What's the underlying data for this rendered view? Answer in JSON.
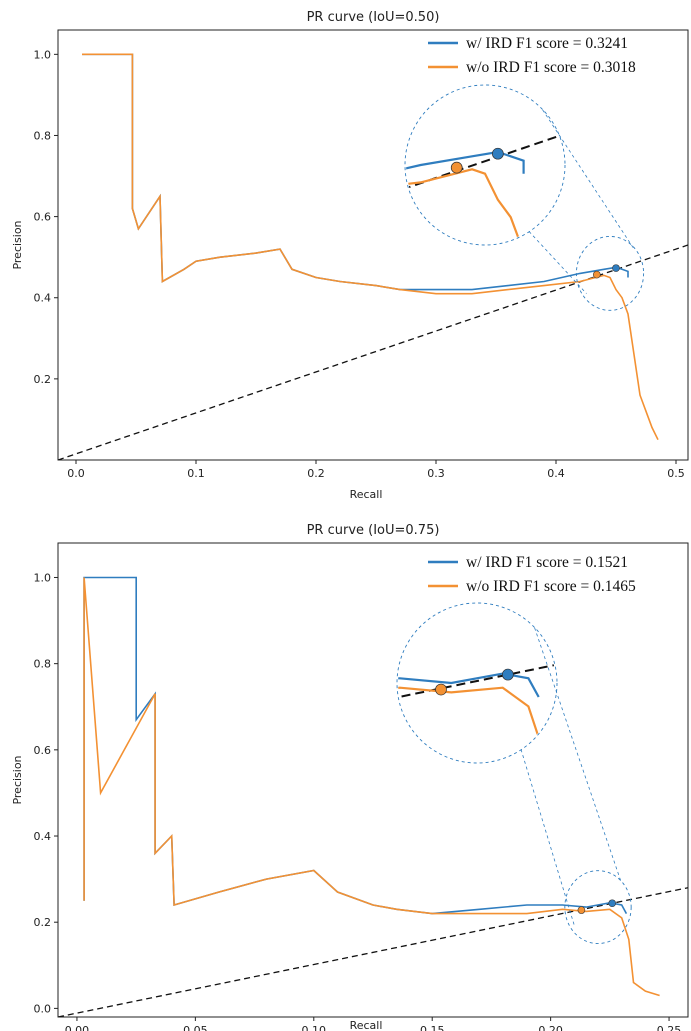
{
  "colors": {
    "w_ird": "#2f7dbf",
    "wo_ird": "#f39133",
    "guide": "#111111"
  },
  "chart_data": [
    {
      "type": "line",
      "title": "PR curve (IoU=0.50)",
      "xlabel": "Recall",
      "ylabel": "Precision",
      "xlim": [
        -0.015,
        0.51
      ],
      "ylim": [
        0.0,
        1.06
      ],
      "xticks": [
        "0.0",
        "0.1",
        "0.2",
        "0.3",
        "0.4",
        "0.5"
      ],
      "yticks": [
        "0.2",
        "0.4",
        "0.6",
        "0.8",
        "1.0"
      ],
      "legend_position": "top-right",
      "legend": [
        {
          "series": "w/ IRD",
          "label": "w/ IRD    F1 score = 0.3241"
        },
        {
          "series": "w/o IRD",
          "label": "w/o IRD  F1 score = 0.3018"
        }
      ],
      "series": [
        {
          "name": "w/ IRD",
          "color": "#2f7dbf",
          "x": [
            0.005,
            0.047,
            0.047,
            0.052,
            0.07,
            0.072,
            0.09,
            0.1,
            0.12,
            0.15,
            0.17,
            0.18,
            0.2,
            0.22,
            0.25,
            0.27,
            0.3,
            0.33,
            0.36,
            0.39,
            0.42,
            0.44,
            0.45,
            0.455,
            0.46,
            0.46
          ],
          "y": [
            1.0,
            1.0,
            0.62,
            0.57,
            0.65,
            0.44,
            0.47,
            0.49,
            0.5,
            0.51,
            0.52,
            0.47,
            0.45,
            0.44,
            0.43,
            0.42,
            0.42,
            0.42,
            0.43,
            0.44,
            0.46,
            0.47,
            0.475,
            0.47,
            0.465,
            0.45
          ]
        },
        {
          "name": "w/o IRD",
          "color": "#f39133",
          "x": [
            0.005,
            0.047,
            0.047,
            0.052,
            0.07,
            0.072,
            0.09,
            0.1,
            0.12,
            0.15,
            0.17,
            0.18,
            0.2,
            0.22,
            0.25,
            0.27,
            0.3,
            0.33,
            0.36,
            0.39,
            0.42,
            0.44,
            0.445,
            0.45,
            0.455,
            0.46,
            0.465,
            0.47,
            0.475,
            0.48,
            0.485
          ],
          "y": [
            1.0,
            1.0,
            0.62,
            0.57,
            0.65,
            0.44,
            0.47,
            0.49,
            0.5,
            0.51,
            0.52,
            0.47,
            0.45,
            0.44,
            0.43,
            0.42,
            0.41,
            0.41,
            0.42,
            0.43,
            0.44,
            0.455,
            0.45,
            0.42,
            0.4,
            0.36,
            0.26,
            0.16,
            0.12,
            0.08,
            0.05
          ]
        }
      ],
      "f1_points": [
        {
          "series": "w/ IRD",
          "x": 0.45,
          "y": 0.473
        },
        {
          "series": "w/o IRD",
          "x": 0.434,
          "y": 0.457
        }
      ],
      "reference_line": {
        "x": [
          -0.015,
          0.51
        ],
        "y": [
          0.0,
          0.53
        ],
        "style": "dashed"
      },
      "zoom_region": {
        "center": [
          0.445,
          0.46
        ],
        "radius_x": 0.028
      }
    },
    {
      "type": "line",
      "title": "PR curve (IoU=0.75)",
      "xlabel": "Recall",
      "ylabel": "Precision",
      "xlim": [
        -0.008,
        0.258
      ],
      "ylim": [
        -0.02,
        1.08
      ],
      "xticks": [
        "0.00",
        "0.05",
        "0.10",
        "0.15",
        "0.20",
        "0.25"
      ],
      "yticks": [
        "0.0",
        "0.2",
        "0.4",
        "0.6",
        "0.8",
        "1.0"
      ],
      "legend_position": "top-right",
      "legend": [
        {
          "series": "w/ IRD",
          "label": "w/ IRD    F1 score = 0.1521"
        },
        {
          "series": "w/o IRD",
          "label": "w/o IRD  F1 score = 0.1465"
        }
      ],
      "series": [
        {
          "name": "w/ IRD",
          "color": "#2f7dbf",
          "x": [
            0.003,
            0.003,
            0.025,
            0.025,
            0.033,
            0.033,
            0.04,
            0.041,
            0.06,
            0.08,
            0.1,
            0.11,
            0.125,
            0.135,
            0.15,
            0.17,
            0.19,
            0.205,
            0.215,
            0.225,
            0.23,
            0.232
          ],
          "y": [
            0.25,
            1.0,
            1.0,
            0.67,
            0.73,
            0.36,
            0.4,
            0.24,
            0.27,
            0.3,
            0.32,
            0.27,
            0.24,
            0.23,
            0.22,
            0.23,
            0.24,
            0.24,
            0.235,
            0.245,
            0.24,
            0.22
          ]
        },
        {
          "name": "w/o IRD",
          "color": "#f39133",
          "x": [
            0.003,
            0.003,
            0.01,
            0.02,
            0.033,
            0.033,
            0.04,
            0.041,
            0.06,
            0.08,
            0.1,
            0.11,
            0.125,
            0.135,
            0.15,
            0.17,
            0.19,
            0.205,
            0.215,
            0.225,
            0.23,
            0.233,
            0.235,
            0.24,
            0.246
          ],
          "y": [
            0.25,
            1.0,
            0.5,
            0.6,
            0.73,
            0.36,
            0.4,
            0.24,
            0.27,
            0.3,
            0.32,
            0.27,
            0.24,
            0.23,
            0.22,
            0.22,
            0.22,
            0.23,
            0.225,
            0.23,
            0.21,
            0.16,
            0.06,
            0.04,
            0.03
          ]
        }
      ],
      "f1_points": [
        {
          "series": "w/ IRD",
          "x": 0.226,
          "y": 0.244
        },
        {
          "series": "w/o IRD",
          "x": 0.213,
          "y": 0.228
        }
      ],
      "reference_line": {
        "x": [
          -0.008,
          0.258
        ],
        "y": [
          -0.02,
          0.28
        ],
        "style": "dashed"
      },
      "zoom_region": {
        "center": [
          0.22,
          0.235
        ],
        "radius_x": 0.014
      }
    }
  ]
}
